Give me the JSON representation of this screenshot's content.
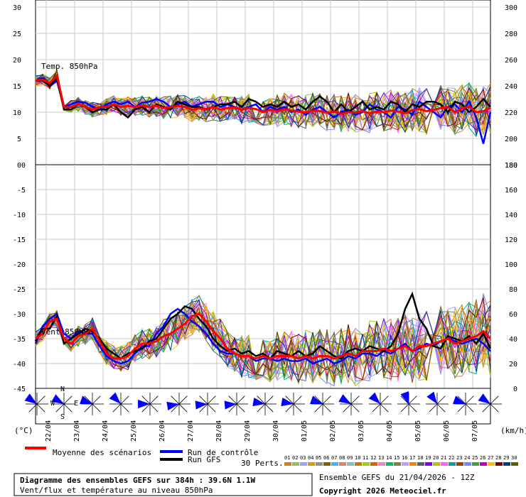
{
  "chart_data": [
    {
      "type": "line",
      "panel": "temperature",
      "title": "Temp. 850hPa",
      "ylim": [
        0,
        30
      ],
      "y_ticks_left": [
        "30",
        "25",
        "20",
        "15",
        "10",
        "5",
        "0"
      ],
      "y_ticks_right": [
        "300",
        "280",
        "260",
        "240",
        "220",
        "200",
        "180"
      ],
      "x": [
        0,
        6,
        12,
        18,
        24,
        30,
        36,
        42,
        48,
        54,
        60,
        66,
        72,
        78,
        84,
        90,
        96,
        102,
        108,
        114,
        120,
        126,
        132,
        138,
        144,
        150,
        156,
        162,
        168,
        174,
        180,
        186,
        192,
        198,
        204,
        210,
        216,
        222,
        228,
        234,
        240,
        246,
        252,
        258,
        264,
        270,
        276,
        282,
        288,
        294,
        300,
        306,
        312,
        318,
        324,
        330,
        336,
        342,
        348,
        354,
        360,
        366,
        372,
        378,
        384
      ],
      "series": [
        {
          "name": "Moyenne des scénarios",
          "color": "#ff0000",
          "values": [
            16,
            16.2,
            15.5,
            17,
            11,
            11,
            11.5,
            11,
            10.5,
            11,
            11,
            11.5,
            11,
            11.2,
            11,
            11.3,
            11,
            11.2,
            10.8,
            11,
            11.2,
            11,
            10.5,
            10.7,
            10.6,
            11,
            10.5,
            10.8,
            10.9,
            10.5,
            10.8,
            10.6,
            10,
            10.5,
            10.2,
            10.6,
            10.3,
            10.1,
            10,
            10.3,
            10.2,
            9.9,
            10.1,
            9.7,
            10,
            9.9,
            10.2,
            9.8,
            10.1,
            10,
            10.3,
            10.1,
            9.8,
            10.4,
            10.6,
            10.2,
            10.4,
            10.8,
            11,
            10,
            10.7,
            11.1,
            10,
            10.2,
            10.8
          ]
        },
        {
          "name": "Run de contrôle",
          "color": "#0000ff",
          "values": [
            16,
            16.5,
            15,
            16,
            11,
            11.5,
            12,
            11.8,
            11,
            10.5,
            11.5,
            12,
            11.5,
            12,
            11,
            11.8,
            12,
            12.5,
            12,
            11,
            11.5,
            12,
            11,
            11.5,
            12,
            12,
            11,
            11.5,
            11,
            10.5,
            11,
            11.5,
            10,
            11,
            10.5,
            11,
            10,
            10.5,
            9.5,
            10.5,
            11,
            10,
            9,
            10,
            10.5,
            9.5,
            10,
            11.5,
            10.5,
            10,
            9,
            11,
            10.5,
            9.5,
            12,
            11,
            10,
            9,
            11,
            11.5,
            10,
            12,
            9,
            4,
            10
          ]
        },
        {
          "name": "Run GFS",
          "color": "#000000",
          "values": [
            16,
            16,
            15,
            16.5,
            10.5,
            10.5,
            11.5,
            11,
            10,
            10.5,
            10.5,
            11.5,
            10,
            9,
            10.5,
            11,
            10,
            11.5,
            11,
            10.5,
            12,
            11.5,
            11,
            11,
            10.5,
            11,
            11.5,
            11.5,
            12,
            11,
            12.5,
            12,
            11,
            11.5,
            11,
            12,
            11,
            11.5,
            10.5,
            12,
            13,
            12,
            10,
            11.5,
            10,
            11,
            12,
            10.5,
            11,
            10.5,
            12,
            11.5,
            10,
            11.5,
            11,
            12,
            12,
            11.5,
            10,
            12,
            11.5,
            10,
            11,
            12.5,
            11
          ]
        }
      ]
    },
    {
      "type": "line",
      "panel": "wind",
      "title": "Vent 850hPa",
      "ylim": [
        0,
        90
      ],
      "y_ticks_left": [
        "0",
        "-5",
        "-10",
        "-15",
        "-20",
        "-25",
        "-30",
        "-35",
        "-40",
        "-45"
      ],
      "y_ticks_right": [
        "180",
        "160",
        "140",
        "120",
        "100",
        "80",
        "60",
        "40",
        "20",
        "0"
      ],
      "x": [
        0,
        6,
        12,
        18,
        24,
        30,
        36,
        42,
        48,
        54,
        60,
        66,
        72,
        78,
        84,
        90,
        96,
        102,
        108,
        114,
        120,
        126,
        132,
        138,
        144,
        150,
        156,
        162,
        168,
        174,
        180,
        186,
        192,
        198,
        204,
        210,
        216,
        222,
        228,
        234,
        240,
        246,
        252,
        258,
        264,
        270,
        276,
        282,
        288,
        294,
        300,
        306,
        312,
        318,
        324,
        330,
        336,
        342,
        348,
        354,
        360,
        366,
        372,
        378,
        384
      ],
      "series": [
        {
          "name": "Moyenne des scénarios",
          "color": "#ff0000",
          "values": [
            20,
            22,
            27,
            28,
            20,
            18,
            21,
            22,
            24,
            19,
            14,
            12,
            12,
            13,
            16,
            18,
            18,
            19,
            21,
            22,
            24,
            26,
            29,
            30,
            27,
            23,
            20,
            16,
            14,
            13,
            13,
            12,
            13,
            12,
            13,
            13,
            13,
            12,
            13,
            12,
            13,
            13,
            12,
            13,
            14,
            13,
            15,
            15,
            15,
            16,
            15,
            16,
            17,
            15,
            17,
            17,
            18,
            19,
            20,
            18,
            19,
            20,
            21,
            23,
            20
          ]
        },
        {
          "name": "Run de contrôle",
          "color": "#0000ff",
          "values": [
            18,
            25,
            28,
            30,
            22,
            20,
            23,
            22,
            22,
            17,
            13,
            11,
            10,
            11,
            14,
            17,
            17,
            22,
            25,
            30,
            32,
            30,
            27,
            25,
            22,
            18,
            15,
            14,
            14,
            13,
            13,
            11,
            12,
            12,
            11,
            12,
            11,
            11,
            12,
            10,
            11,
            12,
            10,
            11,
            13,
            12,
            14,
            14,
            13,
            15,
            14,
            16,
            18,
            15,
            16,
            18,
            17,
            19,
            20,
            19,
            18,
            19,
            20,
            18,
            15
          ]
        },
        {
          "name": "Run GFS",
          "color": "#000000",
          "values": [
            19,
            24,
            24,
            29,
            18,
            20,
            22,
            24,
            23,
            20,
            16,
            14,
            12,
            14,
            15,
            16,
            19,
            20,
            24,
            28,
            30,
            33,
            32,
            28,
            25,
            20,
            17,
            15,
            16,
            14,
            15,
            13,
            14,
            12,
            15,
            14,
            13,
            15,
            13,
            14,
            17,
            15,
            13,
            12,
            15,
            16,
            15,
            17,
            16,
            15,
            17,
            22,
            32,
            38,
            28,
            24,
            17,
            16,
            21,
            20,
            19,
            21,
            18,
            22,
            16
          ]
        }
      ]
    }
  ],
  "x_axis": {
    "dates": [
      "22/04",
      "23/04",
      "24/04",
      "25/04",
      "26/04",
      "27/04",
      "28/04",
      "29/04",
      "30/04",
      "01/05",
      "02/05",
      "03/05",
      "04/05",
      "05/05",
      "06/05",
      "07/05"
    ],
    "left_unit": "(°C)",
    "right_unit": "(km/h)"
  },
  "compass": {
    "n": "N",
    "s": "S",
    "w": "W",
    "e": "E"
  },
  "legend": {
    "mean_label": "Moyenne des scénarios",
    "control_label": "Run de contrôle",
    "gfs_label": "Run GFS",
    "perts_label": "30 Perts.",
    "pert_numbers": [
      "01",
      "02",
      "03",
      "04",
      "05",
      "06",
      "07",
      "08",
      "09",
      "10",
      "11",
      "12",
      "13",
      "14",
      "15",
      "16",
      "17",
      "18",
      "19",
      "20",
      "21",
      "22",
      "23",
      "24",
      "25",
      "26",
      "27",
      "28",
      "29",
      "30"
    ],
    "pert_colors": [
      "#d08020",
      "#8fc050",
      "#a0a0ff",
      "#d0a000",
      "#909090",
      "#806000",
      "#40b0ff",
      "#e08060",
      "#80c0c0",
      "#c08000",
      "#a0d000",
      "#e06000",
      "#ff80c0",
      "#00c060",
      "#808040",
      "#c0a0ff",
      "#ff8000",
      "#606060",
      "#8000ff",
      "#c0c000",
      "#ff60ff",
      "#00a0a0",
      "#a04000",
      "#8080ff",
      "#40a040",
      "#c000c0",
      "#ffc000",
      "#800000",
      "#004080",
      "#606000"
    ]
  },
  "footer": {
    "title_line": "Diagramme des ensembles GEFS sur 384h : 39.6N 1.1W",
    "subtitle_line": "Vent/flux et température au niveau 850hPa",
    "run_info": "Ensemble GEFS du 21/04/2026 - 12Z",
    "copyright": "Copyright 2026 Meteociel.fr"
  },
  "colors": {
    "mean": "#ff0000",
    "control": "#0000ff",
    "gfs": "#000000",
    "wind_arrow": "#0000ff"
  }
}
